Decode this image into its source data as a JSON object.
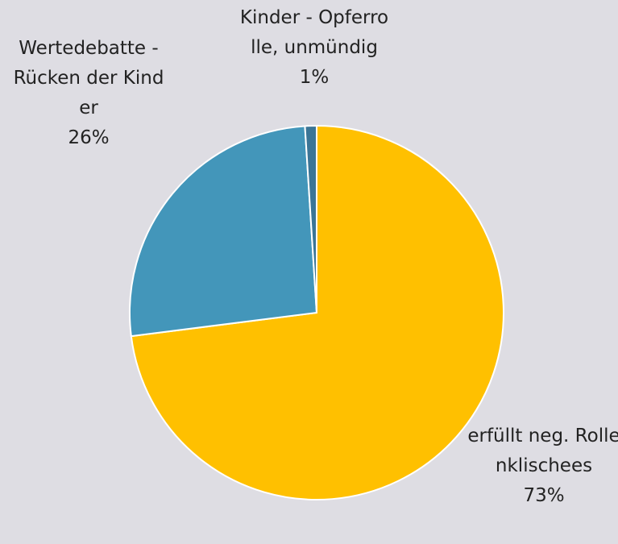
{
  "chart_data": {
    "type": "pie",
    "categories": [
      "erfüllt neg. Rollenklischees",
      "Wertedebatte - Rücken der Kinder",
      "Kinder - Opferrolle, unmündig"
    ],
    "values": [
      73,
      26,
      1
    ],
    "value_labels": [
      "73%",
      "26%",
      "1%"
    ],
    "colors": [
      "#ffc000",
      "#4396ba",
      "#3b7596"
    ]
  }
}
